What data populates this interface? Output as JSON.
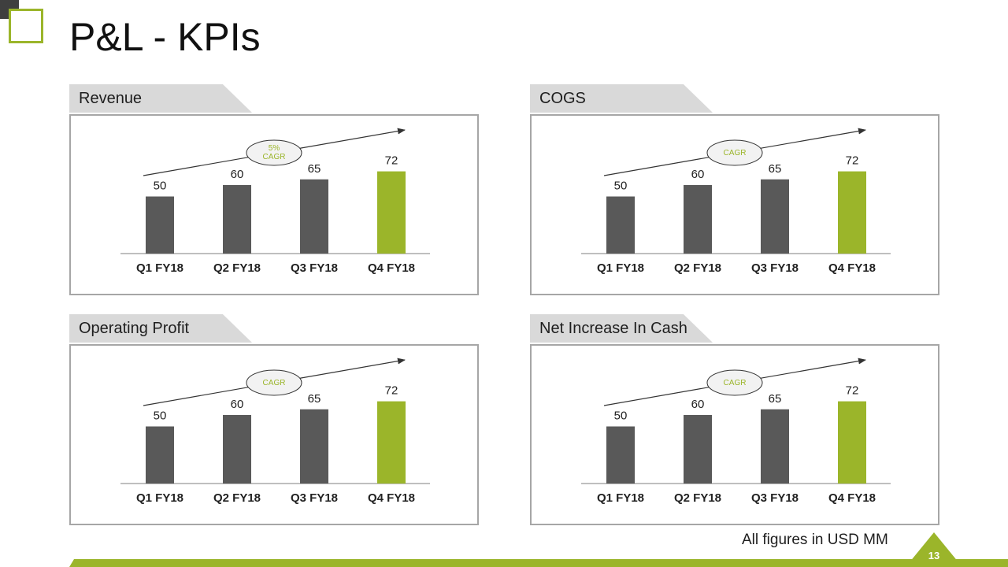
{
  "page": {
    "title": "P&L - KPIs",
    "footnote": "All figures in USD MM",
    "page_number": "13"
  },
  "colors": {
    "accent": "#9bb52a",
    "bar_default": "#595959",
    "bar_highlight": "#9bb52a",
    "tab_bg": "#d9d9d9",
    "frame": "#a6a6a6"
  },
  "panels": [
    {
      "title": "Revenue",
      "cagr": [
        "5%",
        "CAGR"
      ]
    },
    {
      "title": "COGS",
      "cagr": [
        "CAGR"
      ]
    },
    {
      "title": "Operating Profit",
      "cagr": [
        "CAGR"
      ]
    },
    {
      "title": "Net Increase In Cash",
      "cagr": [
        "CAGR"
      ]
    }
  ],
  "chart_data": [
    {
      "type": "bar",
      "title": "Revenue",
      "categories": [
        "Q1 FY18",
        "Q2 FY18",
        "Q3 FY18",
        "Q4 FY18"
      ],
      "values": [
        50,
        60,
        65,
        72
      ],
      "highlight_index": 3,
      "ylim": [
        0,
        75
      ],
      "grid": false
    },
    {
      "type": "bar",
      "title": "COGS",
      "categories": [
        "Q1 FY18",
        "Q2 FY18",
        "Q3 FY18",
        "Q4 FY18"
      ],
      "values": [
        50,
        60,
        65,
        72
      ],
      "highlight_index": 3,
      "ylim": [
        0,
        75
      ],
      "grid": false
    },
    {
      "type": "bar",
      "title": "Operating Profit",
      "categories": [
        "Q1 FY18",
        "Q2 FY18",
        "Q3 FY18",
        "Q4 FY18"
      ],
      "values": [
        50,
        60,
        65,
        72
      ],
      "highlight_index": 3,
      "ylim": [
        0,
        75
      ],
      "grid": false
    },
    {
      "type": "bar",
      "title": "Net Increase In Cash",
      "categories": [
        "Q1 FY18",
        "Q2 FY18",
        "Q3 FY18",
        "Q4 FY18"
      ],
      "values": [
        50,
        60,
        65,
        72
      ],
      "highlight_index": 3,
      "ylim": [
        0,
        75
      ],
      "grid": false
    }
  ]
}
